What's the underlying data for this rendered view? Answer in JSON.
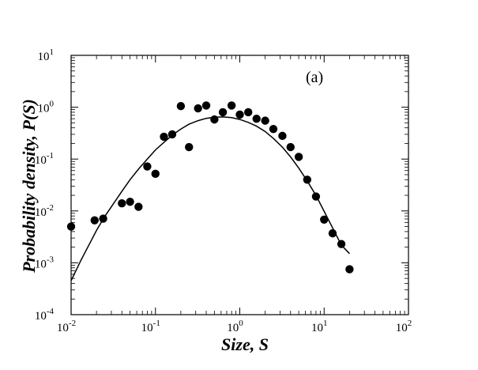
{
  "chart_data": {
    "type": "scatter",
    "panel_label": "(a)",
    "xlabel": "Size, S",
    "ylabel": "Probability density, P(S)",
    "x_scale": "log",
    "y_scale": "log",
    "xlim": [
      0.01,
      100
    ],
    "ylim": [
      0.0001,
      10
    ],
    "x_ticks": [
      {
        "value": 0.01,
        "base": "10",
        "exp": "-2"
      },
      {
        "value": 0.1,
        "base": "10",
        "exp": "-1"
      },
      {
        "value": 1,
        "base": "10",
        "exp": "0"
      },
      {
        "value": 10,
        "base": "10",
        "exp": "1"
      },
      {
        "value": 100,
        "base": "10",
        "exp": "2"
      }
    ],
    "y_ticks": [
      {
        "value": 0.0001,
        "base": "10",
        "exp": "-4"
      },
      {
        "value": 0.001,
        "base": "10",
        "exp": "-3"
      },
      {
        "value": 0.01,
        "base": "10",
        "exp": "-2"
      },
      {
        "value": 0.1,
        "base": "10",
        "exp": "-1"
      },
      {
        "value": 1,
        "base": "10",
        "exp": "0"
      },
      {
        "value": 10,
        "base": "10",
        "exp": "1"
      }
    ],
    "grid": false,
    "colors": {
      "points": "#000000",
      "curve": "#000000",
      "axes": "#000000"
    },
    "series": [
      {
        "kind": "points",
        "points": [
          [
            0.01,
            0.005
          ],
          [
            0.019,
            0.0066
          ],
          [
            0.024,
            0.0071
          ],
          [
            0.04,
            0.014
          ],
          [
            0.05,
            0.015
          ],
          [
            0.063,
            0.012
          ],
          [
            0.08,
            0.072
          ],
          [
            0.1,
            0.052
          ],
          [
            0.126,
            0.27
          ],
          [
            0.158,
            0.3
          ],
          [
            0.2,
            1.05
          ],
          [
            0.25,
            0.17
          ],
          [
            0.32,
            0.95
          ],
          [
            0.4,
            1.08
          ],
          [
            0.5,
            0.58
          ],
          [
            0.63,
            0.8
          ],
          [
            0.8,
            1.08
          ],
          [
            1.0,
            0.72
          ],
          [
            1.26,
            0.8
          ],
          [
            1.58,
            0.6
          ],
          [
            2.0,
            0.55
          ],
          [
            2.5,
            0.38
          ],
          [
            3.2,
            0.28
          ],
          [
            4.0,
            0.17
          ],
          [
            5.0,
            0.11
          ],
          [
            6.3,
            0.04
          ],
          [
            8.0,
            0.019
          ],
          [
            10.0,
            0.0068
          ],
          [
            12.6,
            0.0037
          ],
          [
            16.0,
            0.0023
          ],
          [
            20.0,
            0.00075
          ]
        ]
      },
      {
        "kind": "curve",
        "points": [
          [
            0.01,
            0.00045
          ],
          [
            0.013,
            0.0011
          ],
          [
            0.016,
            0.0021
          ],
          [
            0.02,
            0.0042
          ],
          [
            0.025,
            0.0078
          ],
          [
            0.032,
            0.014
          ],
          [
            0.04,
            0.024
          ],
          [
            0.05,
            0.04
          ],
          [
            0.063,
            0.064
          ],
          [
            0.08,
            0.1
          ],
          [
            0.1,
            0.15
          ],
          [
            0.126,
            0.21
          ],
          [
            0.158,
            0.29
          ],
          [
            0.2,
            0.38
          ],
          [
            0.25,
            0.47
          ],
          [
            0.32,
            0.55
          ],
          [
            0.4,
            0.61
          ],
          [
            0.5,
            0.64
          ],
          [
            0.63,
            0.65
          ],
          [
            0.8,
            0.63
          ],
          [
            1.0,
            0.58
          ],
          [
            1.26,
            0.51
          ],
          [
            1.58,
            0.43
          ],
          [
            2.0,
            0.34
          ],
          [
            2.5,
            0.25
          ],
          [
            3.2,
            0.17
          ],
          [
            4.0,
            0.11
          ],
          [
            5.0,
            0.067
          ],
          [
            6.3,
            0.038
          ],
          [
            8.0,
            0.02
          ],
          [
            10.0,
            0.0098
          ],
          [
            12.6,
            0.0047
          ],
          [
            16.0,
            0.0022
          ],
          [
            20.0,
            0.0015
          ]
        ]
      }
    ]
  }
}
